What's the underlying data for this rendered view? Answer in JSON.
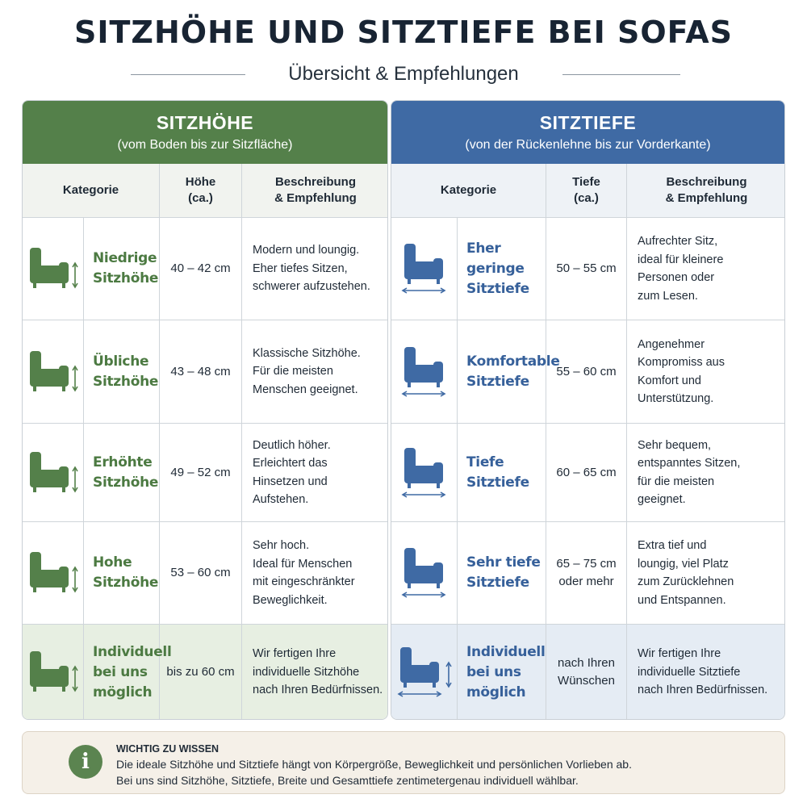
{
  "title": "SITZHÖHE UND SITZTIEFE BEI SOFAS",
  "subtitle": "Übersicht & Empfehlungen",
  "colors": {
    "green": "#54804a",
    "blue": "#3f6aa4",
    "green_text": "#4c7a42",
    "blue_text": "#36609a"
  },
  "sitzhoehe": {
    "title": "SITZHÖHE",
    "subtitle": "(vom Boden bis zur Sitzfläche)",
    "headers": {
      "category": "Kategorie",
      "value": "Höhe\n(ca.)",
      "description": "Beschreibung\n& Empfehlung"
    },
    "rows": [
      {
        "icon": "sofa-chair-height-icon",
        "category": "Niedrige\nSitzhöhe",
        "value": "40 – 42 cm",
        "description": "Modern und loungig.\nEher tiefes Sitzen,\nschwerer aufzustehen."
      },
      {
        "icon": "sofa-chair-height-icon",
        "category": "Übliche\nSitzhöhe",
        "value": "43 – 48 cm",
        "description": "Klassische Sitzhöhe.\nFür die meisten\nMenschen geeignet."
      },
      {
        "icon": "sofa-chair-height-icon",
        "category": "Erhöhte\nSitzhöhe",
        "value": "49 – 52 cm",
        "description": "Deutlich höher.\nErleichtert das\nHinsetzen und\nAufstehen."
      },
      {
        "icon": "sofa-chair-height-icon",
        "category": "Hohe\nSitzhöhe",
        "value": "53 – 60 cm",
        "description": "Sehr hoch.\nIdeal für Menschen\nmit eingeschränkter\nBeweglichkeit."
      },
      {
        "icon": "sofa-chair-height-icon",
        "category": "Individuell\nbei uns\nmöglich",
        "value": "bis zu 60 cm",
        "description": "Wir fertigen Ihre\nindividuelle Sitzhöhe\nnach Ihren Bedürfnissen."
      }
    ]
  },
  "sitztiefe": {
    "title": "SITZTIEFE",
    "subtitle": "(von der Rückenlehne bis zur Vorderkante)",
    "headers": {
      "category": "Kategorie",
      "value": "Tiefe\n(ca.)",
      "description": "Beschreibung\n& Empfehlung"
    },
    "rows": [
      {
        "icon": "sofa-chair-depth-icon",
        "category": "Eher geringe\nSitztiefe",
        "value": "50 – 55 cm",
        "description": "Aufrechter Sitz,\nideal für kleinere\nPersonen oder\nzum Lesen."
      },
      {
        "icon": "sofa-chair-depth-icon",
        "category": "Komfortable\nSitztiefe",
        "value": "55 – 60 cm",
        "description": "Angenehmer\nKompromiss aus\nKomfort und\nUnterstützung."
      },
      {
        "icon": "sofa-chair-depth-icon",
        "category": "Tiefe\nSitztiefe",
        "value": "60 – 65 cm",
        "description": "Sehr bequem,\nentspanntes Sitzen,\nfür die meisten\ngeeignet."
      },
      {
        "icon": "sofa-chair-depth-icon",
        "category": "Sehr tiefe\nSitztiefe",
        "value": "65 – 75 cm\noder mehr",
        "description": "Extra tief und\nloungig, viel Platz\nzum Zurücklehnen\nund Entspannen."
      },
      {
        "icon": "sofa-chair-depth-height-icon",
        "category": "Individuell\nbei uns\nmöglich",
        "value": "nach Ihren\nWünschen",
        "description": "Wir fertigen Ihre\nindividuelle Sitztiefe\nnach Ihren Bedürfnissen."
      }
    ]
  },
  "info": {
    "icon": "info-icon",
    "title": "WICHTIG ZU WISSEN",
    "line1": "Die ideale Sitzhöhe und Sitztiefe hängt von Körpergröße, Beweglichkeit und persönlichen Vorlieben ab.",
    "line2": "Bei uns sind Sitzhöhe, Sitztiefe, Breite und Gesamttiefe zentimetergenau individuell wählbar."
  }
}
